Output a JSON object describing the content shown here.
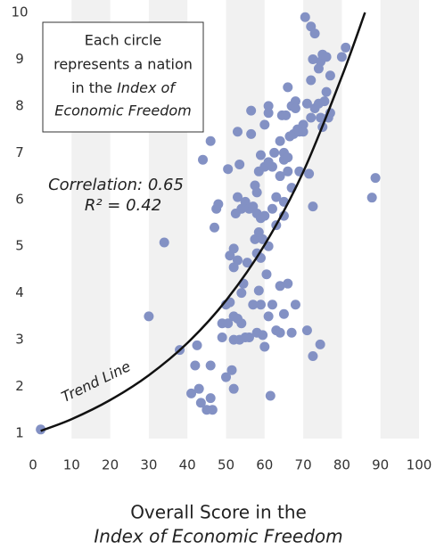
{
  "chart_data": {
    "type": "scatter",
    "title_line1": "Overall Score in the",
    "title_line2": "Index of Economic Freedom",
    "annotation": {
      "line1": "Each circle",
      "line2": "represents a nation",
      "line3a": "in the ",
      "line3b": "Index of",
      "line4": "Economic Freedom"
    },
    "correlation": "Correlation: 0.65",
    "r_squared": "R² = 0.42",
    "color": "#8391c4",
    "stripe_color": "#f1f1f1",
    "xlim": [
      0,
      100
    ],
    "ylim": [
      1,
      10
    ],
    "xticks": [
      0,
      10,
      20,
      30,
      40,
      50,
      60,
      70,
      80,
      90,
      100
    ],
    "yticks": [
      1,
      2,
      3,
      4,
      5,
      6,
      7,
      8,
      9,
      10
    ],
    "x": [
      2,
      30,
      34,
      38,
      41,
      42,
      42.5,
      43,
      43.5,
      44,
      45,
      46,
      46,
      46,
      46.5,
      47,
      47.5,
      48,
      49,
      49,
      50,
      50,
      50.5,
      50.5,
      51,
      51,
      51.5,
      52,
      52,
      52,
      52,
      52,
      52.5,
      53,
      53,
      53,
      53,
      53.5,
      53.5,
      54,
      54,
      54,
      54.5,
      55,
      55,
      55.5,
      56,
      56,
      56.5,
      56.5,
      57,
      57,
      57.5,
      57.5,
      58,
      58,
      58,
      58,
      58.5,
      58.5,
      58.5,
      59,
      59,
      59,
      59,
      59.5,
      59.5,
      60,
      60,
      60,
      60,
      60.5,
      61,
      61,
      61,
      61,
      61,
      61.5,
      62,
      62,
      62,
      62.5,
      63,
      63,
      63,
      64,
      64,
      64,
      64,
      64.5,
      65,
      65,
      65,
      65,
      65,
      65.5,
      66,
      66,
      66,
      66,
      66.5,
      67,
      67,
      67,
      67.5,
      68,
      68,
      68,
      68.5,
      69,
      69,
      70,
      70,
      70.5,
      71,
      71,
      71.5,
      72,
      72,
      72,
      72.5,
      72.5,
      72.5,
      73,
      73,
      74.4,
      74,
      74,
      74.5,
      74.5,
      75,
      75,
      75.5,
      76,
      76,
      76.5,
      77,
      77,
      80,
      81,
      87.8,
      88.7
    ],
    "y": [
      1.08,
      3.5,
      5.08,
      2.78,
      1.85,
      2.45,
      2.88,
      1.95,
      1.65,
      6.85,
      1.5,
      7.25,
      2.45,
      1.75,
      1.5,
      5.4,
      5.8,
      5.9,
      3.05,
      3.35,
      3.75,
      2.2,
      6.65,
      3.35,
      4.8,
      3.8,
      2.35,
      1.95,
      4.95,
      4.55,
      3.5,
      3.0,
      5.7,
      7.45,
      6.05,
      4.7,
      3.45,
      6.75,
      3.0,
      5.8,
      4.0,
      3.35,
      4.2,
      5.95,
      3.05,
      4.65,
      5.8,
      3.05,
      7.9,
      7.4,
      5.85,
      3.75,
      6.3,
      5.15,
      6.15,
      5.7,
      4.85,
      3.15,
      6.6,
      5.3,
      4.05,
      6.95,
      5.6,
      4.75,
      3.75,
      5.15,
      3.1,
      7.6,
      6.7,
      5.65,
      2.85,
      4.4,
      8.0,
      7.85,
      6.8,
      5.0,
      3.5,
      1.8,
      6.7,
      5.8,
      3.75,
      7.0,
      6.05,
      5.45,
      3.2,
      7.25,
      6.5,
      4.15,
      3.15,
      7.8,
      7.0,
      6.85,
      5.95,
      5.65,
      3.55,
      7.8,
      8.4,
      6.9,
      6.6,
      4.2,
      7.35,
      8.0,
      6.25,
      3.15,
      7.4,
      8.1,
      7.95,
      3.75,
      7.5,
      7.45,
      6.6,
      7.6,
      7.45,
      9.9,
      8.05,
      3.2,
      6.55,
      9.7,
      8.55,
      7.75,
      9.0,
      5.85,
      2.65,
      9.55,
      7.95,
      2.9,
      8.8,
      8.05,
      8.95,
      7.75,
      9.1,
      7.55,
      8.1,
      9.05,
      8.3,
      7.75,
      8.65,
      7.85,
      9.05,
      9.25,
      6.04,
      6.46
    ],
    "trend_line": {
      "label": "Trend Line",
      "color": "#111111",
      "x": [
        2,
        10,
        20,
        30,
        40,
        50,
        60,
        70,
        80,
        86
      ],
      "y": [
        1.05,
        1.3,
        1.71,
        2.24,
        2.93,
        3.84,
        5.03,
        6.59,
        8.63,
        10
      ]
    }
  }
}
